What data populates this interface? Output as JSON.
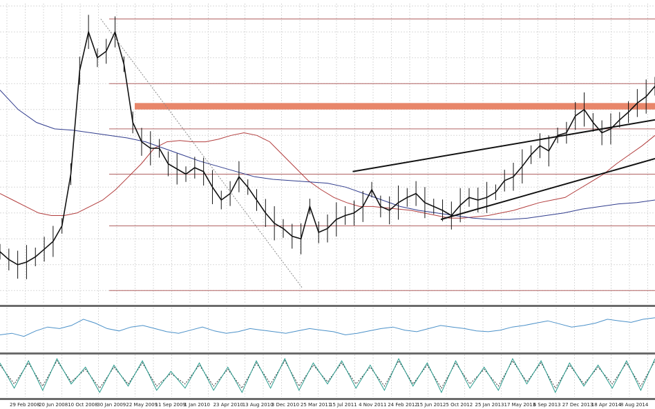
{
  "chart_data": {
    "type": "line",
    "title": "",
    "x_tick_labels": [
      "29 Feb 2008",
      "20 Jun 2008",
      "10 Oct 2008",
      "30 Jan 2009",
      "22 May 2009",
      "11 Sep 2009",
      "1 Jan 2010",
      "23 Apr 2010",
      "13 Aug 2010",
      "3 Dec 2010",
      "25 Mar 2011",
      "15 Jul 2011",
      "4 Nov 2011",
      "24 Feb 2012",
      "15 Jun 2012",
      "5 Oct 2012",
      "25 Jan 2013",
      "17 May 2013",
      "6 Sep 2013",
      "27 Dec 2013",
      "18 Apr 2014",
      "8 Aug 2014"
    ],
    "grid": true,
    "colors": {
      "price": "#111111",
      "ma_fast": "#b23c3c",
      "ma_slow": "#2e3a8c",
      "fib_lines": "#b06060",
      "resistance_zone": "#e8866a",
      "trendline": "#111111",
      "oscillator1": "#4a90c8",
      "oscillator2_main": "#2a9d8f",
      "oscillator2_signal": "#333333",
      "separator": "#6b6b6b",
      "grid": "#d9d9d9"
    },
    "price_series": {
      "name": "",
      "values": [
        0.7,
        0.64,
        0.6,
        0.62,
        0.66,
        0.72,
        0.78,
        0.9,
        1.3,
        2.1,
        2.4,
        2.2,
        2.25,
        2.4,
        2.15,
        1.7,
        1.55,
        1.5,
        1.5,
        1.38,
        1.34,
        1.3,
        1.35,
        1.32,
        1.2,
        1.1,
        1.15,
        1.28,
        1.2,
        1.1,
        1.0,
        0.92,
        0.88,
        0.82,
        0.8,
        1.05,
        0.85,
        0.88,
        0.95,
        0.98,
        1.0,
        1.05,
        1.18,
        1.05,
        1.02,
        1.08,
        1.12,
        1.15,
        1.08,
        1.05,
        1.02,
        0.98,
        1.06,
        1.12,
        1.1,
        1.12,
        1.16,
        1.25,
        1.28,
        1.36,
        1.45,
        1.52,
        1.48,
        1.6,
        1.62,
        1.75,
        1.8,
        1.7,
        1.62,
        1.65,
        1.72,
        1.78,
        1.85,
        1.9,
        1.98
      ]
    },
    "ma_fast_values": [
      1.15,
      1.1,
      1.05,
      1.0,
      0.98,
      0.98,
      1.0,
      1.05,
      1.1,
      1.18,
      1.28,
      1.38,
      1.5,
      1.55,
      1.56,
      1.55,
      1.55,
      1.57,
      1.6,
      1.62,
      1.6,
      1.55,
      1.45,
      1.35,
      1.25,
      1.18,
      1.12,
      1.08,
      1.05,
      1.05,
      1.04,
      1.03,
      1.02,
      1.0,
      0.98,
      0.96,
      0.96,
      0.97,
      0.98,
      1.0,
      1.02,
      1.05,
      1.08,
      1.1,
      1.12,
      1.18,
      1.24,
      1.3,
      1.38,
      1.45,
      1.52,
      1.6
    ],
    "ma_slow_values": [
      1.95,
      1.8,
      1.7,
      1.65,
      1.64,
      1.62,
      1.6,
      1.58,
      1.55,
      1.5,
      1.45,
      1.4,
      1.36,
      1.32,
      1.28,
      1.26,
      1.25,
      1.24,
      1.23,
      1.2,
      1.15,
      1.1,
      1.05,
      1.02,
      1.0,
      0.98,
      0.96,
      0.95,
      0.95,
      0.96,
      0.98,
      1.0,
      1.03,
      1.05,
      1.07,
      1.08,
      1.1
    ],
    "fibonacci_levels": [
      2.5,
      2.0,
      1.65,
      1.3,
      0.9,
      0.4
    ],
    "resistance_zone": [
      1.8,
      1.85
    ],
    "trendlines": [
      {
        "from": [
          28,
          1.32
        ],
        "to": [
          52,
          1.72
        ]
      },
      {
        "from": [
          35,
          0.95
        ],
        "to": [
          52,
          1.42
        ]
      },
      {
        "from": [
          8,
          2.5
        ],
        "to": [
          24,
          0.42
        ]
      }
    ],
    "oscillator1": {
      "name": "",
      "values": [
        40,
        42,
        38,
        45,
        50,
        48,
        52,
        60,
        55,
        48,
        45,
        50,
        52,
        48,
        44,
        42,
        46,
        50,
        45,
        42,
        44,
        48,
        46,
        44,
        42,
        45,
        48,
        46,
        44,
        40,
        42,
        45,
        48,
        50,
        46,
        44,
        48,
        52,
        50,
        48,
        45,
        44,
        46,
        50,
        52,
        55,
        58,
        54,
        50,
        52,
        55,
        60,
        58,
        56,
        60,
        62
      ]
    },
    "oscillator2": {
      "main": [
        80,
        20,
        85,
        15,
        90,
        30,
        70,
        10,
        75,
        25,
        85,
        15,
        60,
        20,
        80,
        15,
        70,
        10,
        85,
        20,
        90,
        15,
        80,
        30,
        85,
        20,
        75,
        15,
        90,
        25,
        80,
        10,
        85,
        20,
        70,
        15,
        90,
        30,
        85,
        10,
        80,
        25,
        75,
        20,
        85,
        15,
        90
      ],
      "signal": [
        75,
        30,
        80,
        25,
        85,
        35,
        65,
        20,
        70,
        30,
        80,
        25,
        55,
        30,
        75,
        25,
        65,
        20,
        80,
        30,
        85,
        25,
        75,
        35,
        80,
        30,
        70,
        25,
        85,
        30,
        75,
        20,
        80,
        30,
        65,
        25,
        85,
        35,
        80,
        20,
        75,
        30,
        70,
        30,
        80,
        25,
        85
      ]
    }
  }
}
